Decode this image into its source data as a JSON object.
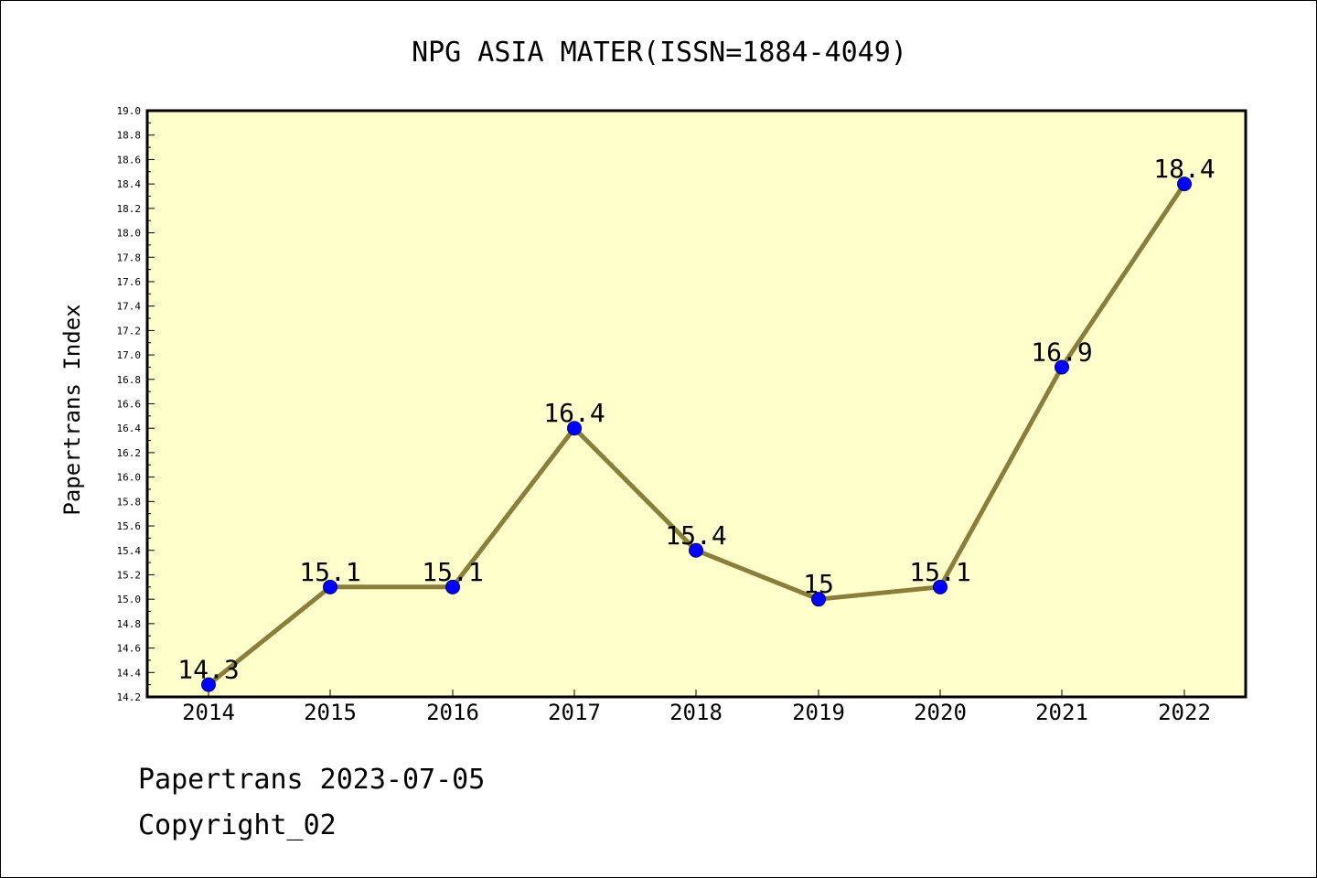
{
  "chart_data": {
    "type": "line",
    "title": "NPG ASIA MATER(ISSN=1884-4049)",
    "xlabel": "",
    "ylabel": "Papertrans Index",
    "categories": [
      "2014",
      "2015",
      "2016",
      "2017",
      "2018",
      "2019",
      "2020",
      "2021",
      "2022"
    ],
    "values": [
      14.3,
      15.1,
      15.1,
      16.4,
      15.4,
      15,
      15.1,
      16.9,
      18.4
    ],
    "data_labels": [
      "14.3",
      "15.1",
      "15.1",
      "16.4",
      "15.4",
      "15",
      "15.1",
      "16.9",
      "18.4"
    ],
    "ylim": [
      14.2,
      19.0
    ],
    "y_major_step": 0.2,
    "y_tick_labels": [
      "14.2",
      "14.4",
      "14.6",
      "14.8",
      "15.0",
      "15.2",
      "15.4",
      "15.6",
      "15.8",
      "16.0",
      "16.2",
      "16.4",
      "16.6",
      "16.8",
      "17.0",
      "17.2",
      "17.4",
      "17.6",
      "17.8",
      "18.0",
      "18.2",
      "18.4",
      "18.6",
      "18.8",
      "19.0"
    ],
    "grid": false,
    "legend": "none",
    "colors": {
      "plot_background": "#ffffcc",
      "line": "#8b7d3a",
      "marker_fill": "#0000ff",
      "marker_stroke": "#000080",
      "axis": "#000000",
      "text": "#000000"
    }
  },
  "footer": {
    "line1": "Papertrans 2023-07-05",
    "line2": "Copyright_02"
  }
}
